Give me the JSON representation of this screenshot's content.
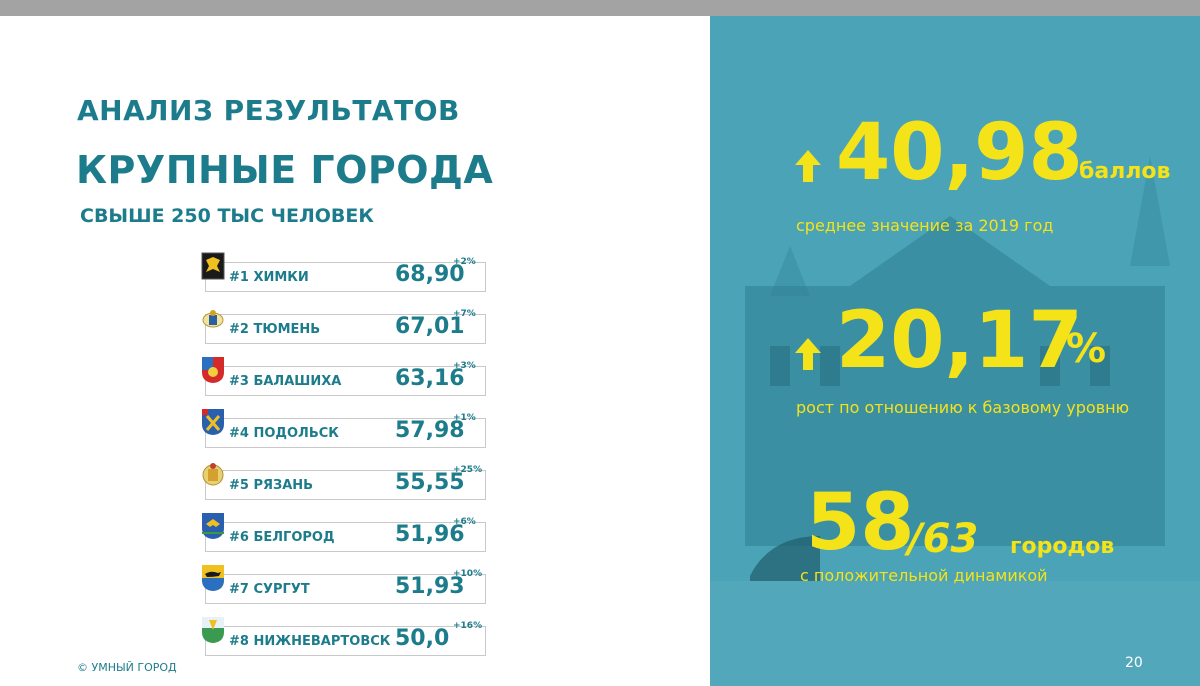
{
  "header": {
    "title1": "АНАЛИЗ РЕЗУЛЬТАТОВ",
    "title2": "КРУПНЫЕ ГОРОДА",
    "title3": "СВЫШЕ 250 ТЫС ЧЕЛОВЕК"
  },
  "ranking": [
    {
      "name": "#1 ХИМКИ",
      "score": "68,90",
      "delta": "+2%"
    },
    {
      "name": "#2 ТЮМЕНЬ",
      "score": "67,01",
      "delta": "+7%"
    },
    {
      "name": "#3 БАЛАШИХА",
      "score": "63,16",
      "delta": "+3%"
    },
    {
      "name": "#4 ПОДОЛЬСК",
      "score": "57,98",
      "delta": "+1%"
    },
    {
      "name": "#5 РЯЗАНЬ",
      "score": "55,55",
      "delta": "+25%"
    },
    {
      "name": "#6 БЕЛГОРОД",
      "score": "51,96",
      "delta": "+6%"
    },
    {
      "name": "#7 СУРГУТ",
      "score": "51,93",
      "delta": "+10%"
    },
    {
      "name": "#8 НИЖНЕВАРТОВСК",
      "score": "50,0",
      "delta": "+16%"
    }
  ],
  "stats": {
    "avg_value": "40,98",
    "avg_unit": "баллов",
    "avg_caption": "среднее значение за 2019 год",
    "growth_value": "20,17",
    "growth_unit": "%",
    "growth_caption": "рост по отношению к базовому уровню",
    "cities_value": "58",
    "cities_total": "/63",
    "cities_unit": "городов",
    "cities_caption": "с положительной динамикой"
  },
  "footer": {
    "copyright": "© УМНЫЙ ГОРОД",
    "page_number": "20"
  },
  "colors": {
    "accent": "#1d7c8c",
    "panel": "#3f9cb0",
    "highlight": "#f5e31a"
  }
}
